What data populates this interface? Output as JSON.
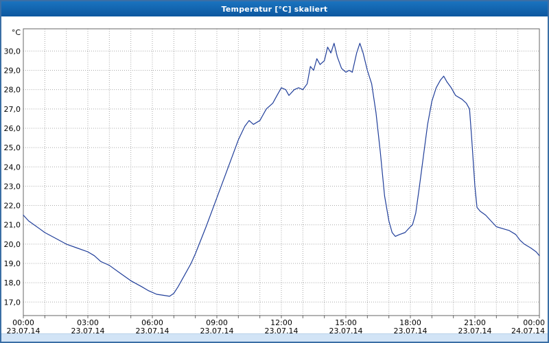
{
  "window": {
    "title": "Temperatur [°C] skaliert"
  },
  "chart_data": {
    "type": "line",
    "title": "Temperatur [°C] skaliert",
    "unit_label": "°C",
    "legend": "none",
    "grid": "dotted",
    "line_color": "#1f3d99",
    "grid_color": "#a8a8a8",
    "border_color": "#666666",
    "text_color": "#000000",
    "xlim": [
      0,
      24
    ],
    "ylim": [
      16.3,
      31.15
    ],
    "y_ticks": [
      {
        "value": 17,
        "label": "17,0"
      },
      {
        "value": 18,
        "label": "18,0"
      },
      {
        "value": 19,
        "label": "19,0"
      },
      {
        "value": 20,
        "label": "20,0"
      },
      {
        "value": 21,
        "label": "21,0"
      },
      {
        "value": 22,
        "label": "22,0"
      },
      {
        "value": 23,
        "label": "23,0"
      },
      {
        "value": 24,
        "label": "24,0"
      },
      {
        "value": 25,
        "label": "25,0"
      },
      {
        "value": 26,
        "label": "26,0"
      },
      {
        "value": 27,
        "label": "27,0"
      },
      {
        "value": 28,
        "label": "28,0"
      },
      {
        "value": 29,
        "label": "29,0"
      },
      {
        "value": 30,
        "label": "30,0"
      }
    ],
    "x_ticks": [
      {
        "hour": 0,
        "time": "00:00",
        "date": "23.07.14"
      },
      {
        "hour": 3,
        "time": "03:00",
        "date": "23.07.14"
      },
      {
        "hour": 6,
        "time": "06:00",
        "date": "23.07.14"
      },
      {
        "hour": 9,
        "time": "09:00",
        "date": "23.07.14"
      },
      {
        "hour": 12,
        "time": "12:00",
        "date": "23.07.14"
      },
      {
        "hour": 15,
        "time": "15:00",
        "date": "23.07.14"
      },
      {
        "hour": 18,
        "time": "18:00",
        "date": "23.07.14"
      },
      {
        "hour": 21,
        "time": "21:00",
        "date": "23.07.14"
      },
      {
        "hour": 24,
        "time": "00:00",
        "date": "24.07.14"
      }
    ],
    "series": [
      {
        "name": "Temperatur",
        "points": [
          [
            0,
            21.5
          ],
          [
            0.25,
            21.2
          ],
          [
            0.5,
            21.0
          ],
          [
            0.75,
            20.8
          ],
          [
            1,
            20.6
          ],
          [
            1.5,
            20.3
          ],
          [
            2,
            20.0
          ],
          [
            2.5,
            19.8
          ],
          [
            3,
            19.6
          ],
          [
            3.3,
            19.4
          ],
          [
            3.6,
            19.1
          ],
          [
            3.8,
            19.0
          ],
          [
            4,
            18.9
          ],
          [
            4.5,
            18.5
          ],
          [
            5,
            18.1
          ],
          [
            5.5,
            17.8
          ],
          [
            5.8,
            17.6
          ],
          [
            6,
            17.5
          ],
          [
            6.2,
            17.4
          ],
          [
            6.5,
            17.35
          ],
          [
            6.8,
            17.3
          ],
          [
            7,
            17.45
          ],
          [
            7.2,
            17.8
          ],
          [
            7.5,
            18.4
          ],
          [
            7.8,
            19.0
          ],
          [
            8,
            19.5
          ],
          [
            8.5,
            20.9
          ],
          [
            9,
            22.4
          ],
          [
            9.5,
            23.9
          ],
          [
            10,
            25.4
          ],
          [
            10.3,
            26.1
          ],
          [
            10.5,
            26.4
          ],
          [
            10.7,
            26.2
          ],
          [
            11,
            26.4
          ],
          [
            11.3,
            27.0
          ],
          [
            11.6,
            27.3
          ],
          [
            11.8,
            27.7
          ],
          [
            12,
            28.1
          ],
          [
            12.2,
            28.0
          ],
          [
            12.35,
            27.7
          ],
          [
            12.6,
            28.0
          ],
          [
            12.8,
            28.1
          ],
          [
            13,
            28.0
          ],
          [
            13.2,
            28.3
          ],
          [
            13.35,
            29.2
          ],
          [
            13.5,
            29.0
          ],
          [
            13.65,
            29.6
          ],
          [
            13.8,
            29.3
          ],
          [
            14,
            29.5
          ],
          [
            14.15,
            30.2
          ],
          [
            14.3,
            29.9
          ],
          [
            14.45,
            30.4
          ],
          [
            14.6,
            29.7
          ],
          [
            14.8,
            29.1
          ],
          [
            15,
            28.9
          ],
          [
            15.15,
            29.0
          ],
          [
            15.3,
            28.9
          ],
          [
            15.5,
            29.9
          ],
          [
            15.65,
            30.4
          ],
          [
            15.8,
            29.9
          ],
          [
            16,
            29.0
          ],
          [
            16.2,
            28.3
          ],
          [
            16.4,
            26.8
          ],
          [
            16.6,
            24.8
          ],
          [
            16.8,
            22.5
          ],
          [
            17,
            21.2
          ],
          [
            17.15,
            20.6
          ],
          [
            17.3,
            20.4
          ],
          [
            17.5,
            20.5
          ],
          [
            17.75,
            20.6
          ],
          [
            18,
            20.9
          ],
          [
            18.1,
            21.0
          ],
          [
            18.25,
            21.6
          ],
          [
            18.4,
            22.8
          ],
          [
            18.6,
            24.5
          ],
          [
            18.8,
            26.2
          ],
          [
            19,
            27.4
          ],
          [
            19.2,
            28.1
          ],
          [
            19.4,
            28.5
          ],
          [
            19.55,
            28.7
          ],
          [
            19.7,
            28.4
          ],
          [
            19.9,
            28.1
          ],
          [
            20.1,
            27.7
          ],
          [
            20.4,
            27.5
          ],
          [
            20.6,
            27.3
          ],
          [
            20.75,
            27.0
          ],
          [
            20.85,
            25.5
          ],
          [
            21,
            23.0
          ],
          [
            21.1,
            21.9
          ],
          [
            21.25,
            21.7
          ],
          [
            21.5,
            21.5
          ],
          [
            21.75,
            21.2
          ],
          [
            22,
            20.9
          ],
          [
            22.3,
            20.8
          ],
          [
            22.6,
            20.7
          ],
          [
            22.9,
            20.5
          ],
          [
            23.1,
            20.2
          ],
          [
            23.3,
            20.0
          ],
          [
            23.6,
            19.8
          ],
          [
            23.85,
            19.6
          ],
          [
            24,
            19.4
          ]
        ]
      }
    ]
  }
}
